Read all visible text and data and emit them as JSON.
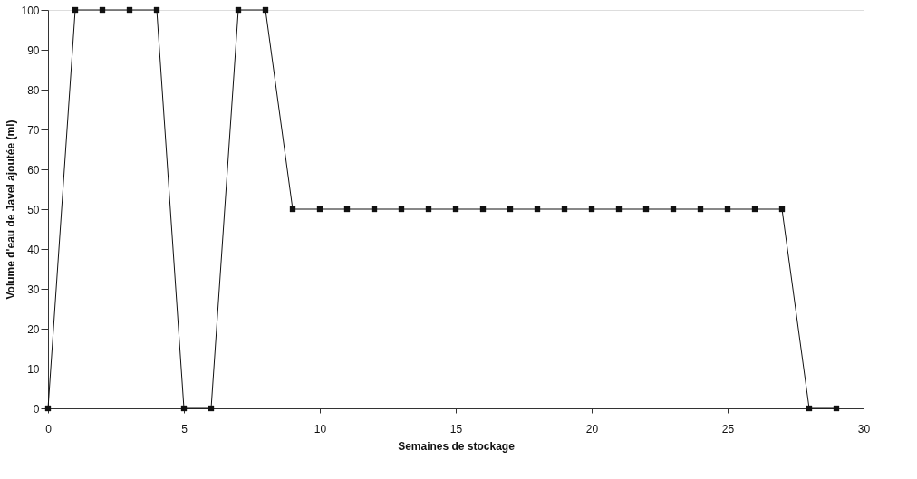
{
  "chart_data": {
    "type": "line",
    "xlabel": "Semaines de stockage",
    "ylabel": "Volume d'eau de Javel ajoutée (ml)",
    "x": [
      0,
      1,
      2,
      3,
      4,
      5,
      6,
      7,
      8,
      9,
      10,
      11,
      12,
      13,
      14,
      15,
      16,
      17,
      18,
      19,
      20,
      21,
      22,
      23,
      24,
      25,
      26,
      27,
      28,
      29
    ],
    "series": [
      {
        "color": "#111111",
        "values": [
          0,
          100,
          100,
          100,
          100,
          0,
          0,
          100,
          100,
          50,
          50,
          50,
          50,
          50,
          50,
          50,
          50,
          50,
          50,
          50,
          50,
          50,
          50,
          50,
          50,
          50,
          50,
          50,
          0,
          0
        ]
      }
    ],
    "xlim": [
      0,
      30
    ],
    "xticks": [
      0,
      5,
      10,
      15,
      20,
      25,
      30
    ],
    "ylim": [
      0,
      100
    ],
    "yticks": [
      0,
      10,
      20,
      30,
      40,
      50,
      60,
      70,
      80,
      90,
      100
    ],
    "marker": "square",
    "line_style": "solid",
    "grid": false,
    "legend": false
  }
}
